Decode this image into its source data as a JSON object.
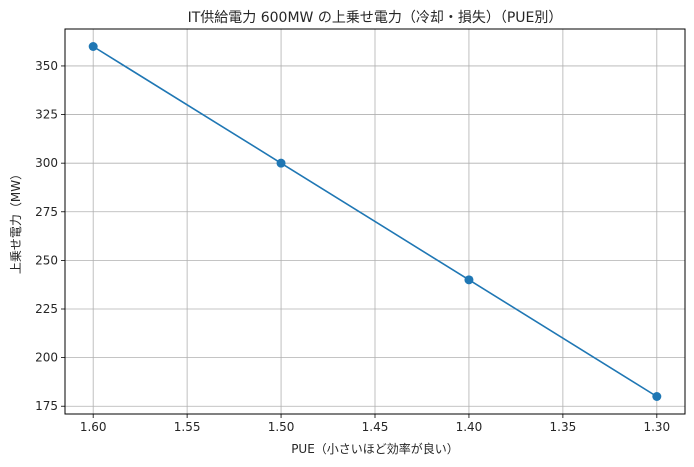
{
  "chart_data": {
    "type": "line",
    "title": "IT供給電力 600MW の上乗せ電力（冷却・損失）（PUE別）",
    "xlabel": "PUE（小さいほど効率が良い）",
    "ylabel": "上乗せ電力（MW）",
    "x": [
      1.6,
      1.5,
      1.4,
      1.3
    ],
    "series": [
      {
        "values": [
          360,
          300,
          240,
          180
        ]
      }
    ],
    "xlim": [
      1.615,
      1.285
    ],
    "ylim": [
      171,
      369
    ],
    "x_inverted": true,
    "xticks": [
      "1.60",
      "1.55",
      "1.50",
      "1.45",
      "1.40",
      "1.35",
      "1.30"
    ],
    "yticks": [
      "175",
      "200",
      "225",
      "250",
      "275",
      "300",
      "325",
      "350"
    ],
    "grid": true,
    "marker": "circle",
    "colors": {
      "line": "#1f77b4",
      "grid": "#b0b0b0",
      "axis": "#000000"
    }
  }
}
